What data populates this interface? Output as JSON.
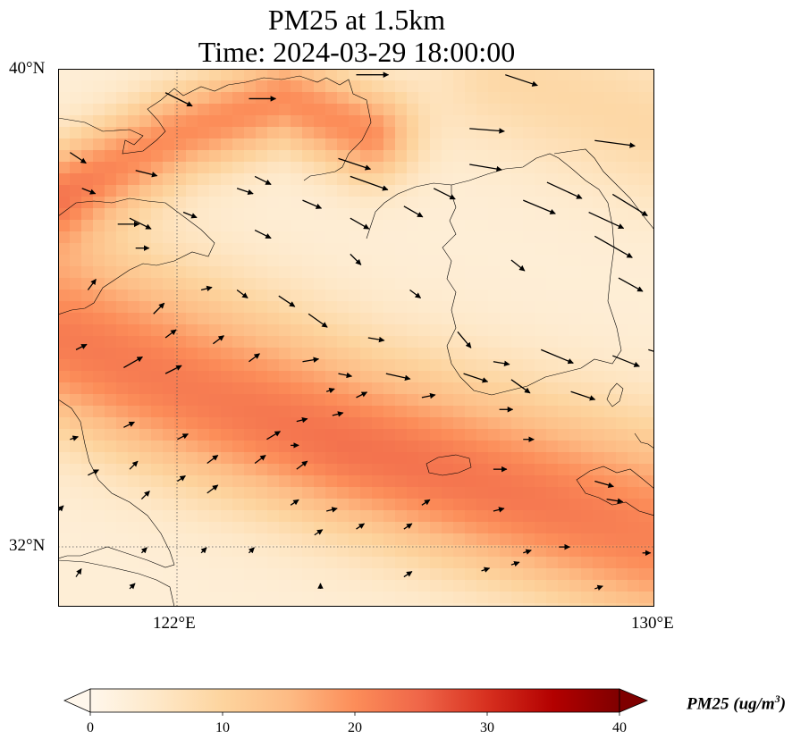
{
  "title": {
    "line1": "PM25 at 1.5km",
    "line2": "Time: 2024-03-29 18:00:00"
  },
  "map": {
    "region": "Yellow Sea / Korean Peninsula",
    "lon_range": [
      120,
      130
    ],
    "lat_range": [
      31,
      40
    ],
    "gridlines": {
      "lon": [
        122,
        130
      ],
      "lat": [
        32,
        40
      ],
      "style": "dotted"
    },
    "lat_ticks": [
      {
        "value": 40,
        "label": "40°N"
      },
      {
        "value": 32,
        "label": "32°N"
      }
    ],
    "lon_ticks": [
      {
        "value": 122,
        "label": "122°E"
      },
      {
        "value": 130,
        "label": "130°E"
      }
    ],
    "field": {
      "variable": "PM25",
      "units": "ug/m3",
      "description": "Smoothed PM2.5 concentration field with elevated bands (~13-20 ug/m3) oriented WNW-ESE",
      "background_value": 3,
      "bands": [
        {
          "name": "northern plume",
          "points": [
            [
              120.0,
              37.9
            ],
            [
              122.0,
              38.9
            ],
            [
              123.8,
              39.5
            ],
            [
              125.2,
              38.9
            ]
          ],
          "peak": 20,
          "width_deg": 0.55
        },
        {
          "name": "mid-latitude band",
          "points": [
            [
              120.0,
              36.2
            ],
            [
              122.0,
              35.4
            ],
            [
              125.0,
              34.2
            ],
            [
              128.0,
              33.4
            ],
            [
              130.0,
              32.9
            ]
          ],
          "peak": 15,
          "width_deg": 1.0
        },
        {
          "name": "southern band",
          "points": [
            [
              120.0,
              35.0
            ],
            [
              122.5,
              34.0
            ],
            [
              125.5,
              33.1
            ],
            [
              128.0,
              32.3
            ],
            [
              130.0,
              31.6
            ]
          ],
          "peak": 14,
          "width_deg": 0.85
        },
        {
          "name": "northeast lobe",
          "points": [
            [
              127.5,
              39.9
            ],
            [
              130.0,
              39.0
            ]
          ],
          "peak": 9,
          "width_deg": 0.9
        }
      ]
    },
    "wind_vectors": [
      {
        "lon": 121.8,
        "lat": 39.6,
        "u": 1.0,
        "v": -0.5
      },
      {
        "lon": 123.2,
        "lat": 39.5,
        "u": 1.0,
        "v": 0.0
      },
      {
        "lon": 125.0,
        "lat": 39.9,
        "u": 1.2,
        "v": 0.0
      },
      {
        "lon": 127.5,
        "lat": 39.9,
        "u": 1.2,
        "v": -0.4
      },
      {
        "lon": 126.9,
        "lat": 39.0,
        "u": 1.3,
        "v": -0.1
      },
      {
        "lon": 129.0,
        "lat": 38.8,
        "u": 1.5,
        "v": -0.2
      },
      {
        "lon": 120.2,
        "lat": 38.6,
        "u": 0.6,
        "v": -0.4
      },
      {
        "lon": 121.3,
        "lat": 38.3,
        "u": 0.8,
        "v": -0.2
      },
      {
        "lon": 123.3,
        "lat": 38.2,
        "u": 0.6,
        "v": -0.3
      },
      {
        "lon": 124.7,
        "lat": 38.5,
        "u": 1.2,
        "v": -0.4
      },
      {
        "lon": 124.9,
        "lat": 38.2,
        "u": 1.4,
        "v": -0.5
      },
      {
        "lon": 126.9,
        "lat": 38.4,
        "u": 1.2,
        "v": -0.2
      },
      {
        "lon": 128.2,
        "lat": 38.1,
        "u": 1.3,
        "v": -0.6
      },
      {
        "lon": 129.3,
        "lat": 37.9,
        "u": 1.3,
        "v": -0.8
      },
      {
        "lon": 120.4,
        "lat": 38.0,
        "u": 0.5,
        "v": -0.2
      },
      {
        "lon": 122.1,
        "lat": 37.6,
        "u": 0.5,
        "v": -0.2
      },
      {
        "lon": 123.0,
        "lat": 38.0,
        "u": 0.6,
        "v": -0.2
      },
      {
        "lon": 124.1,
        "lat": 37.8,
        "u": 0.7,
        "v": -0.3
      },
      {
        "lon": 127.8,
        "lat": 37.8,
        "u": 1.2,
        "v": -0.5
      },
      {
        "lon": 126.3,
        "lat": 38.0,
        "u": 0.8,
        "v": -0.4
      },
      {
        "lon": 121.2,
        "lat": 37.5,
        "u": 0.8,
        "v": -0.4
      },
      {
        "lon": 123.3,
        "lat": 37.3,
        "u": 0.6,
        "v": -0.3
      },
      {
        "lon": 124.9,
        "lat": 37.5,
        "u": 0.7,
        "v": -0.4
      },
      {
        "lon": 125.8,
        "lat": 37.7,
        "u": 0.7,
        "v": -0.4
      },
      {
        "lon": 128.9,
        "lat": 37.6,
        "u": 1.3,
        "v": -0.6
      },
      {
        "lon": 121.0,
        "lat": 37.4,
        "u": 0.8,
        "v": 0.0
      },
      {
        "lon": 121.3,
        "lat": 37.0,
        "u": 0.5,
        "v": 0.0
      },
      {
        "lon": 129.0,
        "lat": 37.2,
        "u": 1.4,
        "v": -0.8
      },
      {
        "lon": 124.9,
        "lat": 36.9,
        "u": 0.4,
        "v": -0.4
      },
      {
        "lon": 127.6,
        "lat": 36.8,
        "u": 0.5,
        "v": -0.4
      },
      {
        "lon": 129.4,
        "lat": 36.5,
        "u": 0.9,
        "v": -0.5
      },
      {
        "lon": 120.5,
        "lat": 36.3,
        "u": 0.3,
        "v": 0.4
      },
      {
        "lon": 122.4,
        "lat": 36.3,
        "u": 0.4,
        "v": 0.1
      },
      {
        "lon": 123.0,
        "lat": 36.3,
        "u": 0.4,
        "v": -0.3
      },
      {
        "lon": 123.7,
        "lat": 36.2,
        "u": 0.6,
        "v": -0.4
      },
      {
        "lon": 124.2,
        "lat": 35.9,
        "u": 0.7,
        "v": -0.5
      },
      {
        "lon": 125.9,
        "lat": 36.3,
        "u": 0.4,
        "v": -0.3
      },
      {
        "lon": 126.7,
        "lat": 35.6,
        "u": 0.5,
        "v": -0.6
      },
      {
        "lon": 121.6,
        "lat": 35.9,
        "u": 0.4,
        "v": 0.4
      },
      {
        "lon": 121.8,
        "lat": 35.5,
        "u": 0.4,
        "v": 0.3
      },
      {
        "lon": 122.6,
        "lat": 35.4,
        "u": 0.4,
        "v": 0.3
      },
      {
        "lon": 123.2,
        "lat": 35.1,
        "u": 0.4,
        "v": 0.3
      },
      {
        "lon": 124.1,
        "lat": 35.1,
        "u": 0.6,
        "v": 0.1
      },
      {
        "lon": 125.2,
        "lat": 35.5,
        "u": 0.6,
        "v": -0.1
      },
      {
        "lon": 127.3,
        "lat": 35.1,
        "u": 0.6,
        "v": -0.1
      },
      {
        "lon": 128.1,
        "lat": 35.3,
        "u": 1.2,
        "v": -0.5
      },
      {
        "lon": 129.3,
        "lat": 35.2,
        "u": 1.0,
        "v": -0.4
      },
      {
        "lon": 129.9,
        "lat": 35.3,
        "u": 1.0,
        "v": -0.3
      },
      {
        "lon": 120.3,
        "lat": 35.3,
        "u": 0.4,
        "v": 0.2
      },
      {
        "lon": 121.1,
        "lat": 35.0,
        "u": 0.7,
        "v": 0.4
      },
      {
        "lon": 121.8,
        "lat": 34.9,
        "u": 0.6,
        "v": 0.3
      },
      {
        "lon": 124.7,
        "lat": 34.9,
        "u": 0.5,
        "v": -0.1
      },
      {
        "lon": 125.5,
        "lat": 34.9,
        "u": 0.9,
        "v": -0.2
      },
      {
        "lon": 127.6,
        "lat": 34.8,
        "u": 0.7,
        "v": -0.5
      },
      {
        "lon": 126.8,
        "lat": 34.9,
        "u": 0.9,
        "v": -0.3
      },
      {
        "lon": 124.5,
        "lat": 34.6,
        "u": 0.3,
        "v": 0.1
      },
      {
        "lon": 125.0,
        "lat": 34.5,
        "u": 0.4,
        "v": 0.2
      },
      {
        "lon": 126.1,
        "lat": 34.5,
        "u": 0.5,
        "v": 0.1
      },
      {
        "lon": 128.6,
        "lat": 34.6,
        "u": 0.9,
        "v": -0.3
      },
      {
        "lon": 124.6,
        "lat": 34.2,
        "u": 0.4,
        "v": 0.1
      },
      {
        "lon": 127.4,
        "lat": 34.3,
        "u": 0.5,
        "v": 0.0
      },
      {
        "lon": 121.1,
        "lat": 34.0,
        "u": 0.4,
        "v": 0.2
      },
      {
        "lon": 124.0,
        "lat": 34.1,
        "u": 0.4,
        "v": 0.1
      },
      {
        "lon": 123.9,
        "lat": 33.7,
        "u": 0.3,
        "v": -0.0
      },
      {
        "lon": 122.0,
        "lat": 33.8,
        "u": 0.4,
        "v": 0.2
      },
      {
        "lon": 123.5,
        "lat": 33.8,
        "u": 0.5,
        "v": 0.3
      },
      {
        "lon": 127.8,
        "lat": 33.8,
        "u": 0.4,
        "v": 0.0
      },
      {
        "lon": 120.2,
        "lat": 33.8,
        "u": 0.3,
        "v": 0.1
      },
      {
        "lon": 122.5,
        "lat": 33.4,
        "u": 0.4,
        "v": 0.3
      },
      {
        "lon": 123.3,
        "lat": 33.4,
        "u": 0.4,
        "v": 0.3
      },
      {
        "lon": 124.0,
        "lat": 33.3,
        "u": 0.4,
        "v": 0.3
      },
      {
        "lon": 120.5,
        "lat": 33.2,
        "u": 0.4,
        "v": 0.2
      },
      {
        "lon": 121.2,
        "lat": 33.3,
        "u": 0.3,
        "v": 0.3
      },
      {
        "lon": 127.3,
        "lat": 33.3,
        "u": 0.5,
        "v": 0.0
      },
      {
        "lon": 129.0,
        "lat": 33.1,
        "u": 0.7,
        "v": -0.2
      },
      {
        "lon": 122.0,
        "lat": 33.1,
        "u": 0.3,
        "v": 0.2
      },
      {
        "lon": 122.5,
        "lat": 32.9,
        "u": 0.4,
        "v": 0.3
      },
      {
        "lon": 121.4,
        "lat": 32.8,
        "u": 0.3,
        "v": 0.3
      },
      {
        "lon": 123.9,
        "lat": 32.7,
        "u": 0.3,
        "v": 0.2
      },
      {
        "lon": 124.5,
        "lat": 32.6,
        "u": 0.4,
        "v": 0.1
      },
      {
        "lon": 126.1,
        "lat": 32.7,
        "u": 0.3,
        "v": 0.2
      },
      {
        "lon": 127.3,
        "lat": 32.6,
        "u": 0.4,
        "v": 0.1
      },
      {
        "lon": 129.2,
        "lat": 32.8,
        "u": 0.6,
        "v": -0.1
      },
      {
        "lon": 120.0,
        "lat": 32.6,
        "u": 0.2,
        "v": 0.2
      },
      {
        "lon": 125.0,
        "lat": 32.3,
        "u": 0.3,
        "v": 0.2
      },
      {
        "lon": 125.8,
        "lat": 32.3,
        "u": 0.3,
        "v": 0.2
      },
      {
        "lon": 124.3,
        "lat": 32.2,
        "u": 0.3,
        "v": 0.2
      },
      {
        "lon": 128.4,
        "lat": 32.0,
        "u": 0.4,
        "v": 0.0
      },
      {
        "lon": 127.8,
        "lat": 31.9,
        "u": 0.3,
        "v": 0.1
      },
      {
        "lon": 127.6,
        "lat": 31.7,
        "u": 0.3,
        "v": 0.1
      },
      {
        "lon": 129.8,
        "lat": 31.9,
        "u": 0.3,
        "v": 0.0
      },
      {
        "lon": 121.4,
        "lat": 31.9,
        "u": 0.2,
        "v": 0.2
      },
      {
        "lon": 122.4,
        "lat": 31.9,
        "u": 0.2,
        "v": 0.2
      },
      {
        "lon": 123.2,
        "lat": 31.9,
        "u": 0.2,
        "v": 0.2
      },
      {
        "lon": 120.3,
        "lat": 31.5,
        "u": 0.2,
        "v": 0.3
      },
      {
        "lon": 121.2,
        "lat": 31.3,
        "u": 0.2,
        "v": 0.2
      },
      {
        "lon": 124.4,
        "lat": 31.3,
        "u": 0.0,
        "v": 0.2
      },
      {
        "lon": 125.8,
        "lat": 31.5,
        "u": 0.3,
        "v": 0.2
      },
      {
        "lon": 127.1,
        "lat": 31.6,
        "u": 0.3,
        "v": 0.1
      },
      {
        "lon": 129.0,
        "lat": 31.3,
        "u": 0.3,
        "v": 0.1
      }
    ]
  },
  "colorbar": {
    "label_main": "PM25 (ug/m",
    "label_sup": "3",
    "label_close": ")",
    "min": 0,
    "max": 40,
    "extend": "both",
    "colormap": "OrRd",
    "ticks": [
      {
        "value": 0,
        "label": "0"
      },
      {
        "value": 10,
        "label": "10"
      },
      {
        "value": 20,
        "label": "20"
      },
      {
        "value": 30,
        "label": "30"
      },
      {
        "value": 40,
        "label": "40"
      }
    ],
    "stops": [
      "#fff7ec",
      "#fee8c8",
      "#fdd49e",
      "#fdbb84",
      "#fc8d59",
      "#ef6548",
      "#d7301f",
      "#b30000",
      "#7f0000"
    ]
  }
}
